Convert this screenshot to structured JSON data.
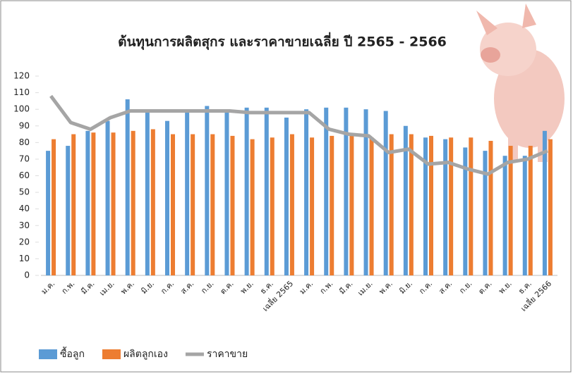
{
  "chart_data": {
    "type": "bar_line",
    "title": "ต้นทุนการผลิตสุกร และราคาขายเฉลี่ย ปี 2565 - 2566",
    "categories": [
      "ม.ค.",
      "ก.พ.",
      "มี.ค.",
      "เม.ย.",
      "พ.ค.",
      "มิ.ย.",
      "ก.ค.",
      "ส.ค.",
      "ก.ย.",
      "ต.ค.",
      "พ.ย.",
      "ธ.ค.",
      "เฉลี่ย 2565",
      "ม.ค.",
      "ก.พ.",
      "มี.ค.",
      "เม.ย.",
      "พ.ค.",
      "มิ.ย.",
      "ก.ค.",
      "ส.ค.",
      "ก.ย.",
      "ต.ค.",
      "พ.ย.",
      "ธ.ค.",
      "เฉลี่ย 2566"
    ],
    "series": [
      {
        "name": "ซื้อลูก",
        "type": "bar",
        "color": "#5b9bd5",
        "values": [
          75,
          78,
          87,
          93,
          106,
          99,
          93,
          99,
          102,
          100,
          101,
          101,
          95,
          100,
          101,
          101,
          100,
          99,
          90,
          83,
          82,
          77,
          75,
          72,
          72,
          87
        ]
      },
      {
        "name": "ผลิตลูกเอง",
        "type": "bar",
        "color": "#ed7d31",
        "values": [
          82,
          85,
          86,
          86,
          87,
          88,
          85,
          85,
          85,
          84,
          82,
          83,
          85,
          83,
          84,
          84,
          83,
          85,
          85,
          84,
          83,
          83,
          81,
          78,
          78,
          82
        ]
      },
      {
        "name": "ราคาขาย",
        "type": "line",
        "color": "#a5a5a5",
        "values": [
          108,
          92,
          88,
          95,
          99,
          99,
          99,
          99,
          99,
          99,
          98,
          98,
          98,
          98,
          88,
          85,
          84,
          74,
          76,
          67,
          68,
          64,
          61,
          68,
          70,
          75
        ]
      }
    ],
    "ylim": [
      0,
      120
    ],
    "yticks": [
      0,
      10,
      20,
      30,
      40,
      50,
      60,
      70,
      80,
      90,
      100,
      110,
      120
    ],
    "legend": "bottom-left"
  }
}
